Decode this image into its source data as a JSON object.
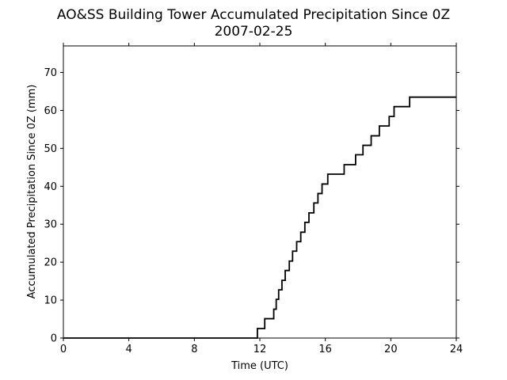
{
  "chart_data": {
    "type": "line",
    "title": "AO&SS Building Tower Accumulated Precipitation Since 0Z",
    "subtitle": "2007-02-25",
    "xlabel": "Time (UTC)",
    "ylabel": "Accumulated Precipitation Since 0Z (mm)",
    "xlim": [
      0,
      24
    ],
    "ylim": [
      0,
      77
    ],
    "xticks": [
      0,
      4,
      8,
      12,
      16,
      20,
      24
    ],
    "yticks": [
      0,
      10,
      20,
      30,
      40,
      50,
      60,
      70
    ],
    "grid": false,
    "step": true,
    "line_color": "#000000",
    "series": [
      {
        "x": [
          0,
          11.85,
          12.3,
          12.85,
          13.0,
          13.15,
          13.35,
          13.55,
          13.8,
          14.0,
          14.25,
          14.5,
          14.75,
          15.0,
          15.3,
          15.55,
          15.8,
          16.15,
          17.15,
          17.85,
          18.3,
          18.8,
          19.3,
          19.9,
          20.2,
          21.15,
          24.0
        ],
        "y": [
          0,
          2.5,
          5.1,
          7.6,
          10.2,
          12.7,
          15.2,
          17.8,
          20.3,
          22.9,
          25.4,
          27.9,
          30.5,
          33.0,
          35.6,
          38.1,
          40.6,
          43.2,
          45.7,
          48.3,
          50.8,
          53.3,
          55.9,
          58.4,
          61.0,
          63.5,
          63.5
        ]
      }
    ]
  }
}
